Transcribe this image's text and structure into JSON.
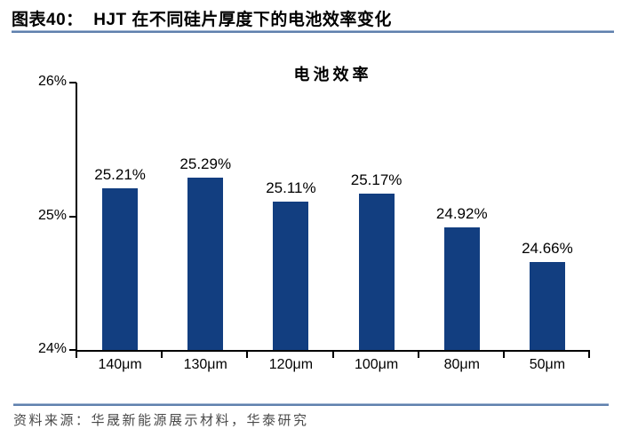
{
  "header": {
    "title": "图表40：  HJT 在不同硅片厚度下的电池效率变化"
  },
  "chart_data": {
    "type": "bar",
    "title": "电池效率",
    "categories": [
      "140μm",
      "130μm",
      "120μm",
      "100μm",
      "80μm",
      "50μm"
    ],
    "values": [
      25.21,
      25.29,
      25.11,
      25.17,
      24.92,
      24.66
    ],
    "data_labels": [
      "25.21%",
      "25.29%",
      "25.11%",
      "25.17%",
      "24.92%",
      "24.66%"
    ],
    "xlabel": "",
    "ylabel": "",
    "ylim": [
      24,
      26
    ],
    "yticks": [
      {
        "value": 26,
        "label": "26%"
      },
      {
        "value": 25,
        "label": "25%"
      },
      {
        "value": 24,
        "label": "24%"
      }
    ],
    "grid": false,
    "legend_position": "none",
    "bar_color": "#123e80"
  },
  "footer": {
    "source": "资料来源：华晟新能源展示材料，华泰研究"
  },
  "colors": {
    "bar": "#123e80",
    "rule_blue": "#5f80ad",
    "source_text": "#4a4a4a",
    "axis": "#000000"
  }
}
